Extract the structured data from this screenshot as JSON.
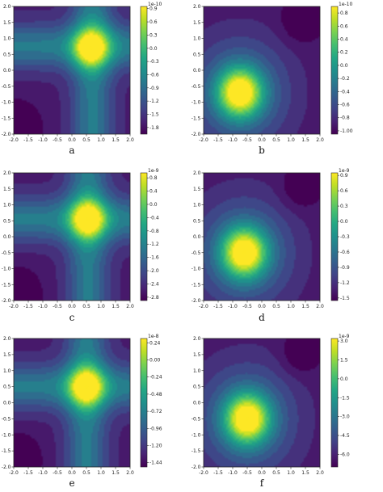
{
  "chart_data": [
    {
      "type": "heatmap",
      "id": "a",
      "caption": "a",
      "xlim": [
        -2.0,
        2.0
      ],
      "ylim": [
        -2.0,
        2.0
      ],
      "x_ticks": [
        "-2.0",
        "-1.5",
        "-1.0",
        "-0.5",
        "0.0",
        "0.5",
        "1.0",
        "1.5",
        "2.0"
      ],
      "y_ticks": [
        "-2.0",
        "-1.5",
        "-1.0",
        "-0.5",
        "0.0",
        "0.5",
        "1.0",
        "1.5",
        "2.0"
      ],
      "colorbar": {
        "scale": "1e-10",
        "ticks": [
          "0.9",
          "0.3",
          "-0.3",
          "-0.9",
          "-1.2",
          "-1.8"
        ],
        "tick_values": [
          0.9,
          0.3,
          -0.3,
          -0.9,
          -1.2,
          -1.8
        ],
        "tick_display": [
          "0.9",
          "0.6",
          "0.3",
          "0.0",
          "-0.3",
          "-0.6",
          "-0.9",
          "-1.2",
          "-1.5",
          "-1.8"
        ],
        "range": [
          -1.95,
          0.95
        ]
      },
      "peak": {
        "x": 0.65,
        "y": 0.7
      },
      "pattern": "cross",
      "cross_center": [
        0.7,
        0.75
      ],
      "colormap": "viridis"
    },
    {
      "type": "heatmap",
      "id": "b",
      "caption": "b",
      "xlim": [
        -2.0,
        2.0
      ],
      "ylim": [
        -2.0,
        2.0
      ],
      "x_ticks": [
        "-2.0",
        "-1.5",
        "-1.0",
        "-0.5",
        "0.0",
        "0.5",
        "1.0",
        "1.5",
        "2.0"
      ],
      "y_ticks": [
        "-2.0",
        "-1.5",
        "-1.0",
        "-0.5",
        "0.0",
        "0.5",
        "1.0",
        "1.5",
        "2.0"
      ],
      "colorbar": {
        "scale": "1e-10",
        "tick_display": [
          "0.8",
          "0.6",
          "0.4",
          "0.2",
          "0.0",
          "-0.2",
          "-0.4",
          "-0.6",
          "-0.8",
          "-1.00"
        ],
        "range": [
          -1.05,
          0.9
        ]
      },
      "peak": {
        "x": -0.75,
        "y": -0.7
      },
      "pattern": "radial",
      "colormap": "viridis"
    },
    {
      "type": "heatmap",
      "id": "c",
      "caption": "c",
      "xlim": [
        -2.0,
        2.0
      ],
      "ylim": [
        -2.0,
        2.0
      ],
      "x_ticks": [
        "-2.0",
        "-1.5",
        "-1.0",
        "-0.5",
        "0.0",
        "0.5",
        "1.0",
        "1.5",
        "2.0"
      ],
      "y_ticks": [
        "-2.0",
        "-1.5",
        "-1.0",
        "-0.5",
        "0.0",
        "0.5",
        "1.0",
        "1.5",
        "2.0"
      ],
      "colorbar": {
        "scale": "1e-9",
        "tick_display": [
          "0.8",
          "0.4",
          "0.0",
          "-0.4",
          "-0.8",
          "-1.2",
          "-1.6",
          "-2.0",
          "-2.4",
          "-2.8"
        ],
        "range": [
          -2.9,
          0.95
        ]
      },
      "peak": {
        "x": 0.55,
        "y": 0.55
      },
      "pattern": "cross",
      "cross_center": [
        0.55,
        0.55
      ],
      "colormap": "viridis"
    },
    {
      "type": "heatmap",
      "id": "d",
      "caption": "d",
      "xlim": [
        -2.0,
        2.0
      ],
      "ylim": [
        -2.0,
        2.0
      ],
      "x_ticks": [
        "-2.0",
        "-1.5",
        "-1.0",
        "-0.5",
        "0.0",
        "0.5",
        "1.0",
        "1.5",
        "2.0"
      ],
      "y_ticks": [
        "-2.0",
        "-1.5",
        "-1.0",
        "-0.5",
        "0.0",
        "0.5",
        "1.0",
        "1.5",
        "2.0"
      ],
      "colorbar": {
        "scale": "1e-9",
        "tick_display": [
          "0.9",
          "0.6",
          "0.3",
          "0.0",
          "-0.3",
          "-0.6",
          "-0.9",
          "-1.2",
          "-1.5"
        ],
        "range": [
          -1.55,
          0.95
        ]
      },
      "peak": {
        "x": -0.6,
        "y": -0.5
      },
      "pattern": "radial",
      "colormap": "viridis"
    },
    {
      "type": "heatmap",
      "id": "e",
      "caption": "e",
      "xlim": [
        -2.0,
        2.0
      ],
      "ylim": [
        -2.0,
        2.0
      ],
      "x_ticks": [
        "-2.0",
        "-1.5",
        "-1.0",
        "-0.5",
        "0.0",
        "0.5",
        "1.0",
        "1.5",
        "2.0"
      ],
      "y_ticks": [
        "-2.0",
        "-1.5",
        "-1.0",
        "-0.5",
        "0.0",
        "0.5",
        "1.0",
        "1.5",
        "2.0"
      ],
      "colorbar": {
        "scale": "1e-8",
        "tick_display": [
          "0.24",
          "0.00",
          "-0.24",
          "-0.48",
          "-0.72",
          "-0.96",
          "-1.20",
          "-1.44"
        ],
        "range": [
          -1.5,
          0.3
        ]
      },
      "peak": {
        "x": 0.5,
        "y": 0.5
      },
      "pattern": "cross",
      "cross_center": [
        0.5,
        0.5
      ],
      "colormap": "viridis"
    },
    {
      "type": "heatmap",
      "id": "f",
      "caption": "f",
      "xlim": [
        -2.0,
        2.0
      ],
      "ylim": [
        -2.0,
        2.0
      ],
      "x_ticks": [
        "-2.0",
        "-1.5",
        "-1.0",
        "-0.5",
        "0.0",
        "0.5",
        "1.0",
        "1.5",
        "2.0"
      ],
      "y_ticks": [
        "-2.0",
        "-1.5",
        "-1.0",
        "-0.5",
        "0.0",
        "0.5",
        "1.0",
        "1.5",
        "2.0"
      ],
      "colorbar": {
        "scale": "1e-9",
        "tick_display": [
          "3.0",
          "1.5",
          "0.0",
          "-1.5",
          "-3.0",
          "-4.5",
          "-6.0"
        ],
        "range": [
          -7.0,
          3.2
        ]
      },
      "peak": {
        "x": -0.5,
        "y": -0.5
      },
      "pattern": "radial",
      "colormap": "viridis"
    }
  ]
}
